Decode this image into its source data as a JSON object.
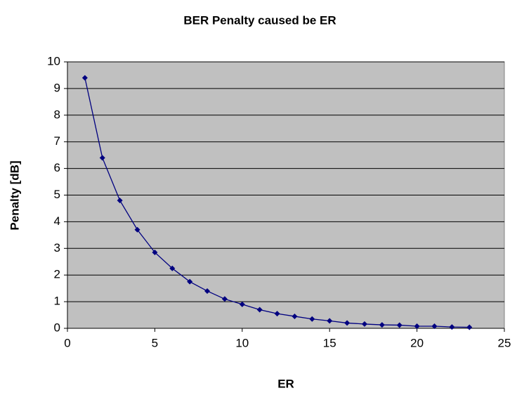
{
  "chart_data": {
    "type": "line",
    "title": "BER Penalty caused be ER",
    "xlabel": "ER",
    "ylabel": "Penalty [dB]",
    "x": [
      1,
      2,
      3,
      4,
      5,
      6,
      7,
      8,
      9,
      10,
      11,
      12,
      13,
      14,
      15,
      16,
      17,
      18,
      19,
      20,
      21,
      22,
      23
    ],
    "series": [
      {
        "name": "Penalty",
        "color": "#000080",
        "values": [
          9.4,
          6.4,
          4.8,
          3.7,
          2.85,
          2.25,
          1.75,
          1.4,
          1.1,
          0.9,
          0.7,
          0.55,
          0.45,
          0.35,
          0.28,
          0.2,
          0.16,
          0.13,
          0.12,
          0.08,
          0.08,
          0.05,
          0.04
        ]
      }
    ],
    "xlim": [
      0,
      25
    ],
    "xticks": [
      0,
      5,
      10,
      15,
      20,
      25
    ],
    "ylim": [
      0,
      10
    ],
    "yticks": [
      0,
      1,
      2,
      3,
      4,
      5,
      6,
      7,
      8,
      9,
      10
    ],
    "grid": true,
    "plot_background": "#c0c0c0"
  }
}
